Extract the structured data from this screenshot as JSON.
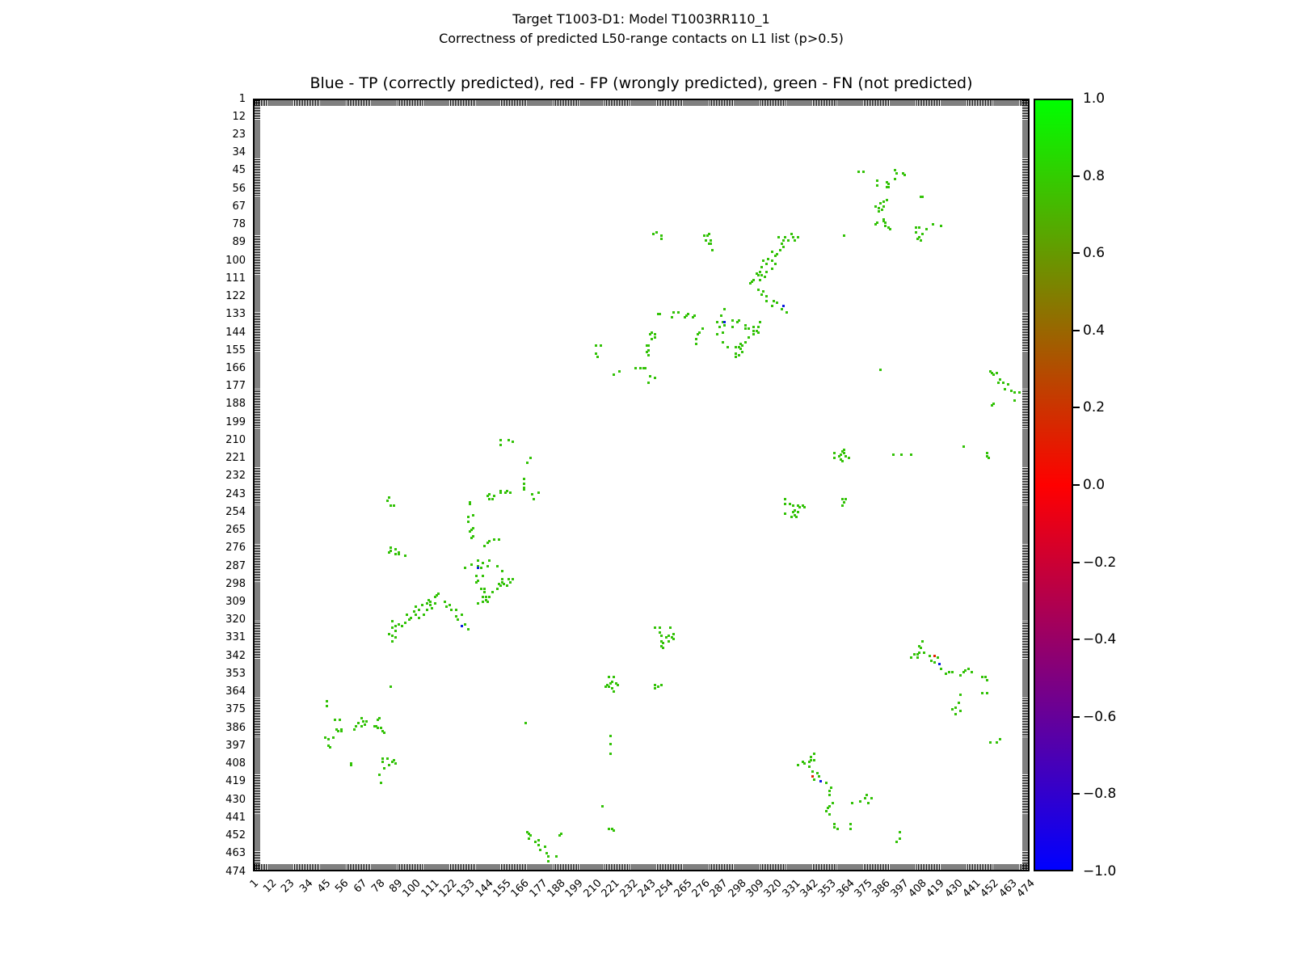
{
  "title": {
    "line1": "Target T1003-D1: Model T1003RR110_1",
    "line2": "Correctness of predicted L50-range contacts on L1 list (p>0.5)"
  },
  "axes_title": "Blue - TP (correctly predicted), red - FP (wrongly predicted), green - FN (not predicted)",
  "chart_data": {
    "type": "scatter",
    "title": "Blue - TP (correctly predicted), red - FP (wrongly predicted), green - FN (not predicted)",
    "xlim": [
      1,
      474
    ],
    "ylim": [
      474,
      1
    ],
    "grid": false,
    "symmetric_matrix": true,
    "axis_tick_labels": [
      1,
      12,
      23,
      34,
      45,
      56,
      67,
      78,
      89,
      100,
      111,
      122,
      133,
      144,
      155,
      166,
      177,
      188,
      199,
      210,
      221,
      232,
      243,
      254,
      265,
      276,
      287,
      298,
      309,
      320,
      331,
      342,
      353,
      364,
      375,
      386,
      397,
      408,
      419,
      430,
      441,
      452,
      463,
      474
    ],
    "colorbar": {
      "min": -1.0,
      "max": 1.0,
      "tick_values": [
        1.0,
        0.8,
        0.6,
        0.4,
        0.2,
        0.0,
        -0.2,
        -0.4,
        -0.6,
        -0.8,
        -1.0
      ],
      "tick_labels": [
        "1.0",
        "0.8",
        "0.6",
        "0.4",
        "0.2",
        "0.0",
        "−0.2",
        "−0.4",
        "−0.6",
        "−0.8",
        "−1.0"
      ],
      "gradient_bottom": "#0000ff",
      "gradient_middle": "#ff0000",
      "gradient_top": "#00ff00"
    },
    "classes": {
      "fn": {
        "label": "FN (not predicted)",
        "color": "#33c208"
      },
      "fp": {
        "label": "FP (wrongly predicted)",
        "color": "#e02400"
      },
      "tp": {
        "label": "TP (correctly predicted)",
        "color": "#0a1ae0"
      }
    },
    "contacts": {
      "fn": [
        [
          45,
          392
        ],
        [
          46,
          370
        ],
        [
          46,
          373
        ],
        [
          47,
          393
        ],
        [
          47,
          397
        ],
        [
          48,
          398
        ],
        [
          50,
          392
        ],
        [
          51,
          381
        ],
        [
          52,
          387
        ],
        [
          53,
          388
        ],
        [
          54,
          381
        ],
        [
          55,
          387
        ],
        [
          55,
          388
        ],
        [
          61,
          408
        ],
        [
          61,
          409
        ],
        [
          63,
          387
        ],
        [
          64,
          385
        ],
        [
          65,
          383
        ],
        [
          67,
          380
        ],
        [
          67,
          385
        ],
        [
          68,
          382
        ],
        [
          69,
          384
        ],
        [
          70,
          382
        ],
        [
          75,
          385
        ],
        [
          76,
          385
        ],
        [
          77,
          381
        ],
        [
          77,
          386
        ],
        [
          78,
          380
        ],
        [
          78,
          415
        ],
        [
          79,
          386
        ],
        [
          79,
          420
        ],
        [
          80,
          388
        ],
        [
          80,
          405
        ],
        [
          80,
          407
        ],
        [
          81,
          389
        ],
        [
          81,
          411
        ],
        [
          83,
          405
        ],
        [
          84,
          409
        ],
        [
          85,
          361
        ],
        [
          86,
          407
        ],
        [
          87,
          406
        ],
        [
          88,
          408
        ],
        [
          83,
          247
        ],
        [
          84,
          245
        ],
        [
          85,
          250
        ],
        [
          87,
          250
        ],
        [
          84,
          279
        ],
        [
          85,
          276
        ],
        [
          85,
          278
        ],
        [
          88,
          277
        ],
        [
          88,
          280
        ],
        [
          90,
          279
        ],
        [
          90,
          280
        ],
        [
          94,
          281
        ],
        [
          84,
          329
        ],
        [
          86,
          321
        ],
        [
          86,
          325
        ],
        [
          86,
          330
        ],
        [
          86,
          333
        ],
        [
          88,
          324
        ],
        [
          88,
          327
        ],
        [
          88,
          331
        ],
        [
          90,
          323
        ],
        [
          92,
          324
        ],
        [
          94,
          322
        ],
        [
          95,
          317
        ],
        [
          96,
          320
        ],
        [
          97,
          319
        ],
        [
          99,
          315
        ],
        [
          100,
          312
        ],
        [
          100,
          317
        ],
        [
          102,
          314
        ],
        [
          102,
          319
        ],
        [
          104,
          311
        ],
        [
          105,
          317
        ],
        [
          107,
          310
        ],
        [
          107,
          314
        ],
        [
          108,
          308
        ],
        [
          109,
          309
        ],
        [
          109,
          311
        ],
        [
          110,
          313
        ],
        [
          112,
          306
        ],
        [
          112,
          310
        ],
        [
          113,
          305
        ],
        [
          114,
          304
        ],
        [
          118,
          309
        ],
        [
          119,
          312
        ],
        [
          121,
          311
        ],
        [
          122,
          314
        ],
        [
          125,
          314
        ],
        [
          125,
          318
        ],
        [
          126,
          320
        ],
        [
          128,
          317
        ],
        [
          130,
          323
        ],
        [
          132,
          326
        ],
        [
          130,
          288
        ],
        [
          134,
          286
        ],
        [
          137,
          293
        ],
        [
          137,
          297
        ],
        [
          138,
          284
        ],
        [
          138,
          287
        ],
        [
          138,
          296
        ],
        [
          138,
          310
        ],
        [
          140,
          288
        ],
        [
          140,
          301
        ],
        [
          141,
          285
        ],
        [
          141,
          293
        ],
        [
          141,
          306
        ],
        [
          141,
          309
        ],
        [
          142,
          301
        ],
        [
          142,
          303
        ],
        [
          143,
          306
        ],
        [
          143,
          308
        ],
        [
          144,
          287
        ],
        [
          144,
          309
        ],
        [
          145,
          284
        ],
        [
          145,
          306
        ],
        [
          147,
          303
        ],
        [
          150,
          287
        ],
        [
          150,
          301
        ],
        [
          151,
          298
        ],
        [
          152,
          299
        ],
        [
          153,
          290
        ],
        [
          153,
          295
        ],
        [
          153,
          297
        ],
        [
          154,
          298
        ],
        [
          156,
          299
        ],
        [
          157,
          295
        ],
        [
          158,
          297
        ],
        [
          159,
          295
        ],
        [
          132,
          257
        ],
        [
          132,
          260
        ],
        [
          133,
          266
        ],
        [
          134,
          265
        ],
        [
          134,
          270
        ],
        [
          135,
          256
        ],
        [
          135,
          264
        ],
        [
          135,
          269
        ],
        [
          142,
          275
        ],
        [
          144,
          273
        ],
        [
          145,
          272
        ],
        [
          148,
          271
        ],
        [
          151,
          271
        ],
        [
          133,
          248
        ],
        [
          133,
          249
        ],
        [
          144,
          244
        ],
        [
          145,
          243
        ],
        [
          145,
          246
        ],
        [
          147,
          246
        ],
        [
          148,
          244
        ],
        [
          152,
          241
        ],
        [
          152,
          242
        ],
        [
          155,
          242
        ],
        [
          156,
          241
        ],
        [
          158,
          242
        ],
        [
          166,
          237
        ],
        [
          166,
          240
        ],
        [
          171,
          243
        ],
        [
          172,
          246
        ],
        [
          175,
          242
        ],
        [
          152,
          210
        ],
        [
          152,
          213
        ],
        [
          157,
          210
        ],
        [
          159,
          211
        ],
        [
          166,
          234
        ],
        [
          166,
          239
        ],
        [
          168,
          224
        ],
        [
          170,
          221
        ],
        [
          167,
          383
        ],
        [
          214,
          434
        ],
        [
          168,
          450
        ],
        [
          169,
          451
        ],
        [
          169,
          454
        ],
        [
          170,
          452
        ],
        [
          173,
          456
        ],
        [
          175,
          455
        ],
        [
          175,
          458
        ],
        [
          176,
          461
        ],
        [
          179,
          459
        ],
        [
          180,
          463
        ],
        [
          181,
          465
        ],
        [
          181,
          468
        ],
        [
          186,
          465
        ],
        [
          188,
          452
        ],
        [
          189,
          451
        ],
        [
          218,
          448
        ],
        [
          220,
          448
        ],
        [
          221,
          449
        ],
        [
          219,
          391
        ],
        [
          219,
          396
        ],
        [
          219,
          402
        ],
        [
          216,
          361
        ],
        [
          217,
          360
        ],
        [
          218,
          355
        ],
        [
          218,
          361
        ],
        [
          219,
          359
        ],
        [
          220,
          358
        ],
        [
          220,
          362
        ],
        [
          221,
          355
        ],
        [
          221,
          364
        ],
        [
          222,
          359
        ],
        [
          223,
          360
        ],
        [
          246,
          325
        ],
        [
          249,
          325
        ],
        [
          249,
          328
        ],
        [
          250,
          330
        ],
        [
          250,
          333
        ],
        [
          250,
          336
        ],
        [
          251,
          334
        ],
        [
          251,
          337
        ],
        [
          253,
          331
        ],
        [
          254,
          330
        ],
        [
          254,
          333
        ],
        [
          255,
          325
        ],
        [
          256,
          331
        ],
        [
          257,
          329
        ],
        [
          257,
          332
        ],
        [
          246,
          360
        ],
        [
          246,
          362
        ],
        [
          248,
          361
        ],
        [
          250,
          360
        ],
        [
          333,
          409
        ],
        [
          336,
          407
        ],
        [
          337,
          408
        ],
        [
          340,
          407
        ],
        [
          340,
          410
        ],
        [
          341,
          404
        ],
        [
          341,
          406
        ],
        [
          342,
          413
        ],
        [
          343,
          402
        ],
        [
          343,
          406
        ],
        [
          343,
          418
        ],
        [
          345,
          414
        ],
        [
          346,
          416
        ],
        [
          350,
          420
        ],
        [
          350,
          437
        ],
        [
          351,
          435
        ],
        [
          352,
          425
        ],
        [
          352,
          427
        ],
        [
          352,
          434
        ],
        [
          352,
          439
        ],
        [
          353,
          423
        ],
        [
          354,
          432
        ],
        [
          355,
          445
        ],
        [
          355,
          447
        ],
        [
          357,
          448
        ],
        [
          365,
          445
        ],
        [
          365,
          448
        ],
        [
          366,
          432
        ],
        [
          371,
          431
        ],
        [
          374,
          429
        ],
        [
          375,
          427
        ],
        [
          376,
          432
        ],
        [
          378,
          429
        ],
        [
          393,
          456
        ],
        [
          395,
          450
        ],
        [
          395,
          454
        ]
      ],
      "fp": [
        [
          342,
          416
        ]
      ],
      "tp": [
        [
          128,
          324
        ],
        [
          138,
          288
        ],
        [
          347,
          419
        ]
      ]
    }
  }
}
